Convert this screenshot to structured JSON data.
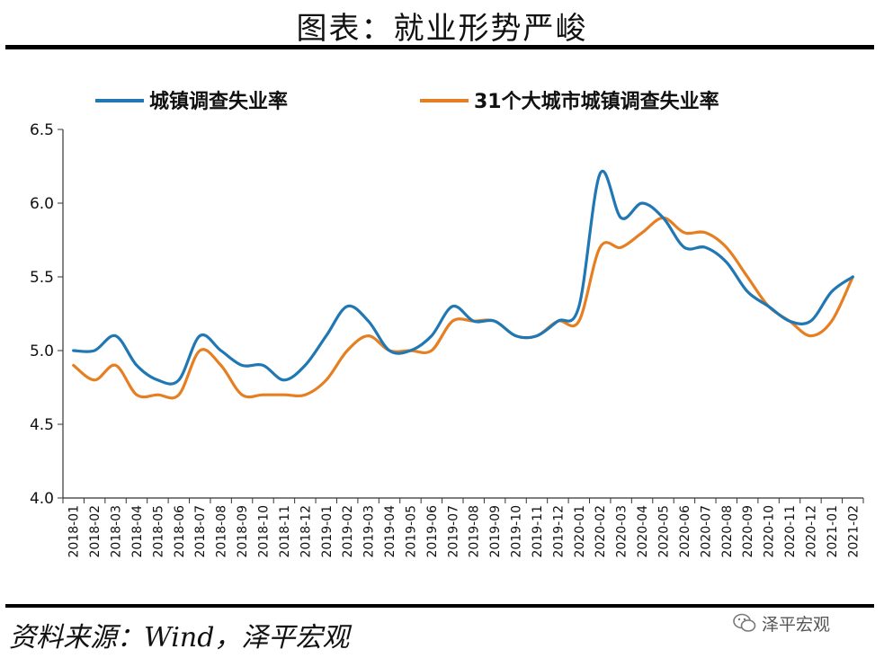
{
  "header": {
    "title": "图表：就业形势严峻"
  },
  "footer": {
    "source": "资料来源：Wind，泽平宏观",
    "watermark": "泽平宏观"
  },
  "colors": {
    "series_1": "#1f77b4",
    "series_2": "#e67e22"
  },
  "chart_data": {
    "type": "line",
    "title": "图表：就业形势严峻",
    "xlabel": "",
    "ylabel": "",
    "ylim": [
      4.0,
      6.5
    ],
    "yticks": [
      "4.0",
      "4.5",
      "5.0",
      "5.5",
      "6.0",
      "6.5"
    ],
    "grid": false,
    "legend": "top",
    "categories": [
      "2018-01",
      "2018-02",
      "2018-03",
      "2018-04",
      "2018-05",
      "2018-06",
      "2018-07",
      "2018-08",
      "2018-09",
      "2018-10",
      "2018-11",
      "2018-12",
      "2019-01",
      "2019-02",
      "2019-03",
      "2019-04",
      "2019-05",
      "2019-06",
      "2019-07",
      "2019-08",
      "2019-09",
      "2019-10",
      "2019-11",
      "2019-12",
      "2020-01",
      "2020-02",
      "2020-03",
      "2020-04",
      "2020-05",
      "2020-06",
      "2020-07",
      "2020-08",
      "2020-09",
      "2020-10",
      "2020-11",
      "2020-12",
      "2021-01",
      "2021-02"
    ],
    "series": [
      {
        "name": "城镇调查失业率",
        "values": [
          5.0,
          5.0,
          5.1,
          4.9,
          4.8,
          4.8,
          5.1,
          5.0,
          4.9,
          4.9,
          4.8,
          4.9,
          5.1,
          5.3,
          5.2,
          5.0,
          5.0,
          5.1,
          5.3,
          5.2,
          5.2,
          5.1,
          5.1,
          5.2,
          5.3,
          6.2,
          5.9,
          6.0,
          5.9,
          5.7,
          5.7,
          5.6,
          5.4,
          5.3,
          5.2,
          5.2,
          5.4,
          5.5
        ]
      },
      {
        "name": "31个大城市城镇调查失业率",
        "values": [
          4.9,
          4.8,
          4.9,
          4.7,
          4.7,
          4.7,
          5.0,
          4.9,
          4.7,
          4.7,
          4.7,
          4.7,
          4.8,
          5.0,
          5.1,
          5.0,
          5.0,
          5.0,
          5.2,
          5.2,
          5.2,
          5.1,
          5.1,
          5.2,
          5.2,
          5.7,
          5.7,
          5.8,
          5.9,
          5.8,
          5.8,
          5.7,
          5.5,
          5.3,
          5.2,
          5.1,
          5.2,
          5.5
        ]
      }
    ]
  }
}
